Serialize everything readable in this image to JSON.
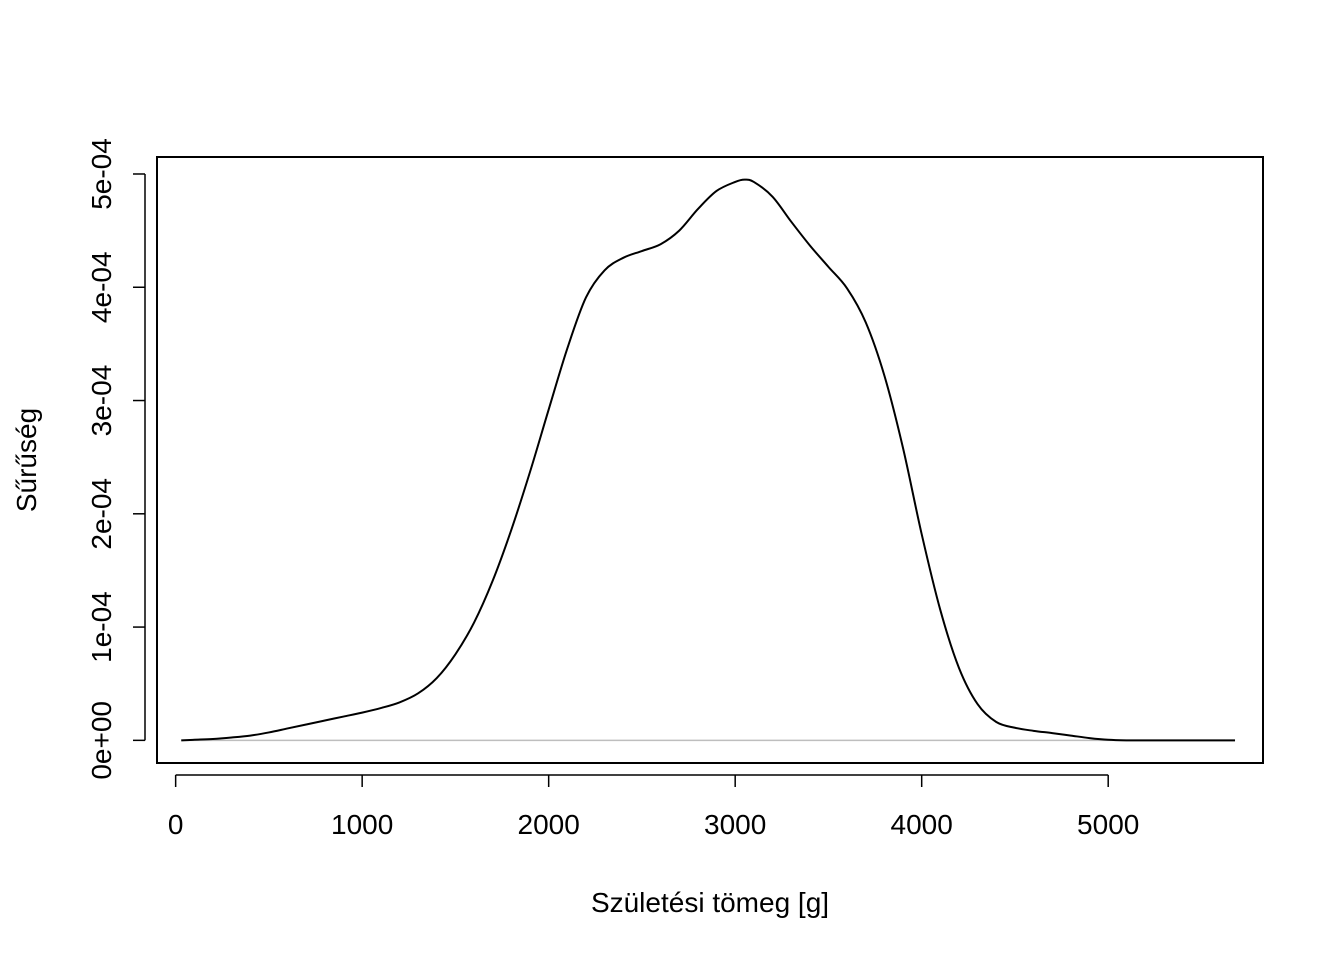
{
  "chart_data": {
    "type": "line",
    "title": "",
    "xlabel": "Születési tömeg [g]",
    "ylabel": "Sűrűség",
    "xlim": [
      -100,
      5830
    ],
    "ylim": [
      -2e-05,
      0.000515
    ],
    "x_ticks": [
      0,
      1000,
      2000,
      3000,
      4000,
      5000
    ],
    "x_tick_labels": [
      "0",
      "1000",
      "2000",
      "3000",
      "4000",
      "5000"
    ],
    "y_ticks": [
      0,
      0.0001,
      0.0002,
      0.0003,
      0.0004,
      0.0005
    ],
    "y_tick_labels": [
      "0e+00",
      "1e-04",
      "2e-04",
      "3e-04",
      "4e-04",
      "5e-04"
    ],
    "grid": false,
    "baseline": 0,
    "series": [
      {
        "color": "#000000",
        "baseline_color": "#bebebe",
        "x": [
          30,
          100,
          200,
          300,
          400,
          500,
          600,
          700,
          800,
          900,
          1000,
          1100,
          1200,
          1300,
          1400,
          1500,
          1600,
          1700,
          1800,
          1900,
          2000,
          2100,
          2200,
          2300,
          2400,
          2500,
          2600,
          2700,
          2800,
          2900,
          3000,
          3050,
          3100,
          3200,
          3300,
          3400,
          3500,
          3600,
          3700,
          3800,
          3900,
          4000,
          4100,
          4200,
          4300,
          4400,
          4500,
          4600,
          4700,
          4800,
          4900,
          5000,
          5100,
          5200,
          5300,
          5400,
          5500,
          5600,
          5680
        ],
        "y": [
          0.0,
          5e-07,
          1.2e-06,
          2.5e-06,
          4.2e-06,
          7e-06,
          1.05e-05,
          1.4e-05,
          1.75e-05,
          2.1e-05,
          2.45e-05,
          2.85e-05,
          3.35e-05,
          4.15e-05,
          5.5e-05,
          7.6e-05,
          0.000104,
          0.000141,
          0.000186,
          0.000237,
          0.000292,
          0.000346,
          0.000391,
          0.000415,
          0.000426,
          0.000432,
          0.000438,
          0.00045,
          0.000469,
          0.000485,
          0.000493,
          0.000495,
          0.000493,
          0.00048,
          0.000458,
          0.000437,
          0.000418,
          0.000399,
          0.000369,
          0.000322,
          0.000258,
          0.000182,
          0.000115,
          6.39e-05,
          3.19e-05,
          1.62e-05,
          1.11e-05,
          8.4e-06,
          6.4e-06,
          4.2e-06,
          2e-06,
          5e-07,
          0.0,
          0.0,
          0.0,
          0.0,
          0.0,
          0.0,
          0.0
        ]
      }
    ]
  }
}
